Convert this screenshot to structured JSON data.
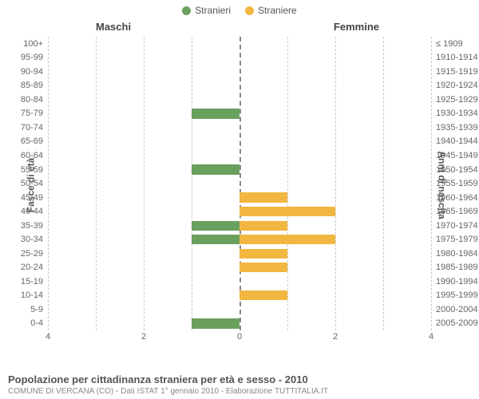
{
  "legend": {
    "male": {
      "label": "Stranieri",
      "color": "#6aa05e"
    },
    "female": {
      "label": "Straniere",
      "color": "#f2b741"
    }
  },
  "headers": {
    "male": "Maschi",
    "female": "Femmine"
  },
  "axis_labels": {
    "left": "Fasce di età",
    "right": "Anni di nascita"
  },
  "chart": {
    "type": "population-pyramid",
    "xlim": 4,
    "xticks": [
      4,
      2,
      0,
      2,
      4
    ],
    "grid_color": "#cccccc",
    "center_color": "#888888",
    "bar_male_color": "#6aa05e",
    "bar_female_color": "#f2b741",
    "background": "#ffffff",
    "label_fontsize": 11,
    "rows": [
      {
        "age": "100+",
        "birth": "≤ 1909",
        "m": 0,
        "f": 0
      },
      {
        "age": "95-99",
        "birth": "1910-1914",
        "m": 0,
        "f": 0
      },
      {
        "age": "90-94",
        "birth": "1915-1919",
        "m": 0,
        "f": 0
      },
      {
        "age": "85-89",
        "birth": "1920-1924",
        "m": 0,
        "f": 0
      },
      {
        "age": "80-84",
        "birth": "1925-1929",
        "m": 0,
        "f": 0
      },
      {
        "age": "75-79",
        "birth": "1930-1934",
        "m": 1,
        "f": 0
      },
      {
        "age": "70-74",
        "birth": "1935-1939",
        "m": 0,
        "f": 0
      },
      {
        "age": "65-69",
        "birth": "1940-1944",
        "m": 0,
        "f": 0
      },
      {
        "age": "60-64",
        "birth": "1945-1949",
        "m": 0,
        "f": 0
      },
      {
        "age": "55-59",
        "birth": "1950-1954",
        "m": 1,
        "f": 0
      },
      {
        "age": "50-54",
        "birth": "1955-1959",
        "m": 0,
        "f": 0
      },
      {
        "age": "45-49",
        "birth": "1960-1964",
        "m": 0,
        "f": 1
      },
      {
        "age": "40-44",
        "birth": "1965-1969",
        "m": 0,
        "f": 2
      },
      {
        "age": "35-39",
        "birth": "1970-1974",
        "m": 1,
        "f": 1
      },
      {
        "age": "30-34",
        "birth": "1975-1979",
        "m": 1,
        "f": 2
      },
      {
        "age": "25-29",
        "birth": "1980-1984",
        "m": 0,
        "f": 1
      },
      {
        "age": "20-24",
        "birth": "1985-1989",
        "m": 0,
        "f": 1
      },
      {
        "age": "15-19",
        "birth": "1990-1994",
        "m": 0,
        "f": 0
      },
      {
        "age": "10-14",
        "birth": "1995-1999",
        "m": 0,
        "f": 1
      },
      {
        "age": "5-9",
        "birth": "2000-2004",
        "m": 0,
        "f": 0
      },
      {
        "age": "0-4",
        "birth": "2005-2009",
        "m": 1,
        "f": 0
      }
    ]
  },
  "footer": {
    "title": "Popolazione per cittadinanza straniera per età e sesso - 2010",
    "subtitle": "COMUNE DI VERCANA (CO) - Dati ISTAT 1° gennaio 2010 - Elaborazione TUTTITALIA.IT"
  }
}
